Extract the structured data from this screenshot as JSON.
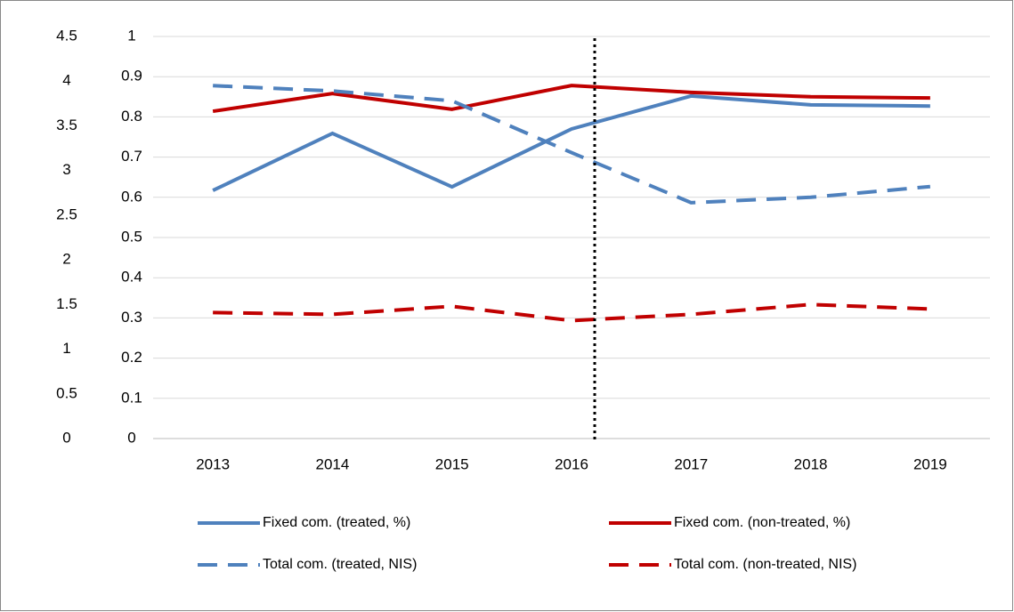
{
  "chart_data": {
    "type": "line",
    "categories": [
      "2013",
      "2014",
      "2015",
      "2016",
      "2017",
      "2018",
      "2019"
    ],
    "ylim": [
      0,
      1
    ],
    "yticks": [
      0,
      0.1,
      0.2,
      0.3,
      0.4,
      0.5,
      0.6,
      0.7,
      0.8,
      0.9,
      1
    ],
    "y2lim": [
      0,
      4.5
    ],
    "y2ticks": [
      0,
      0.5,
      1,
      1.5,
      2,
      2.5,
      3,
      3.5,
      4,
      4.5
    ],
    "grid": true,
    "legend": "bottom",
    "series": [
      {
        "name": "Fixed com. (treated, %)",
        "color": "#4f81bd",
        "dash": false,
        "values": [
          0.617,
          0.759,
          0.626,
          0.77,
          0.852,
          0.83,
          0.827
        ]
      },
      {
        "name": "Fixed com. (non-treated, %)",
        "color": "#c00000",
        "dash": false,
        "values": [
          0.814,
          0.858,
          0.819,
          0.878,
          0.861,
          0.85,
          0.847
        ]
      },
      {
        "name": "Total com. (treated, NIS)",
        "color": "#4f81bd",
        "dash": true,
        "axis": "y2",
        "values": [
          3.95,
          3.89,
          3.78,
          3.2,
          2.64,
          2.7,
          2.82
        ]
      },
      {
        "name": "Total com. (non-treated, NIS)",
        "color": "#c00000",
        "dash": true,
        "axis": "y2",
        "values": [
          1.41,
          1.39,
          1.48,
          1.32,
          1.39,
          1.5,
          1.45
        ]
      }
    ]
  }
}
